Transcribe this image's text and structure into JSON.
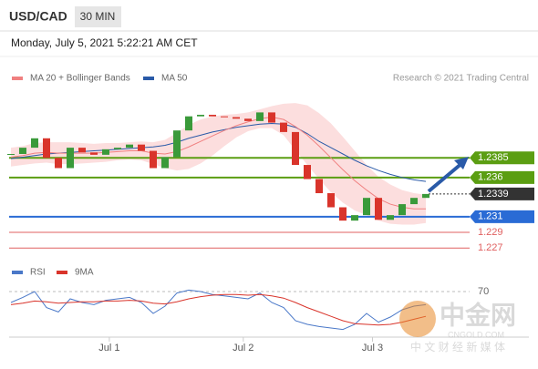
{
  "header": {
    "symbol": "USD/CAD",
    "timeframe": "30 MIN",
    "datetime": "Monday, July 5, 2021 5:22:21 AM CET"
  },
  "watermark": {
    "brand": "中金网",
    "site": "CNGOLD.COM",
    "tagline": "中 文 财 经 新 媒 体"
  },
  "chart_data": [
    {
      "type": "candlestick",
      "legend": [
        {
          "name": "MA 20 + Bollinger Bands",
          "color": "#f08080"
        },
        {
          "name": "MA 50",
          "color": "#2a5aa8"
        }
      ],
      "credit": "Research © 2021 Trading Central",
      "ylim": [
        1.2261,
        1.2476
      ],
      "close": [
        1.239,
        1.2398,
        1.241,
        1.2385,
        1.2372,
        1.2398,
        1.2392,
        1.2389,
        1.2396,
        1.2398,
        1.2402,
        1.2394,
        1.2372,
        1.2386,
        1.242,
        1.2438,
        1.244,
        1.2438,
        1.2437,
        1.2435,
        1.2432,
        1.2443,
        1.243,
        1.2418,
        1.2376,
        1.2358,
        1.234,
        1.2322,
        1.2305,
        1.2312,
        1.2334,
        1.2306,
        1.2312,
        1.2326,
        1.2334,
        1.2339
      ],
      "ma50": [
        1.2384,
        1.2386,
        1.2388,
        1.239,
        1.2391,
        1.2392,
        1.2393,
        1.2394,
        1.2395,
        1.2396,
        1.2397,
        1.2398,
        1.2399,
        1.2401,
        1.2405,
        1.241,
        1.2414,
        1.2418,
        1.2421,
        1.2424,
        1.2426,
        1.2428,
        1.2429,
        1.2428,
        1.2424,
        1.2416,
        1.2406,
        1.2398,
        1.239,
        1.2382,
        1.2375,
        1.2369,
        1.2364,
        1.236,
        1.2357,
        1.2355
      ],
      "ma20": [
        1.2386,
        1.2388,
        1.2391,
        1.2392,
        1.2391,
        1.2391,
        1.2391,
        1.2391,
        1.2392,
        1.2393,
        1.2394,
        1.2394,
        1.2391,
        1.239,
        1.2393,
        1.2399,
        1.2406,
        1.2413,
        1.242,
        1.2426,
        1.2431,
        1.2435,
        1.2437,
        1.2434,
        1.2425,
        1.2414,
        1.24,
        1.2385,
        1.237,
        1.2356,
        1.2344,
        1.2333,
        1.2326,
        1.2322,
        1.232,
        1.232
      ],
      "band_upper": [
        1.2398,
        1.24,
        1.2404,
        1.2405,
        1.2405,
        1.2405,
        1.2404,
        1.2403,
        1.2404,
        1.2404,
        1.2405,
        1.2406,
        1.2405,
        1.2408,
        1.2417,
        1.2427,
        1.2434,
        1.2438,
        1.244,
        1.2441,
        1.2443,
        1.2447,
        1.2451,
        1.2454,
        1.2455,
        1.2452,
        1.2442,
        1.2429,
        1.2412,
        1.2394,
        1.2376,
        1.2361,
        1.2351,
        1.2344,
        1.234,
        1.2338
      ],
      "band_lower": [
        1.2374,
        1.2376,
        1.2378,
        1.2379,
        1.2377,
        1.2377,
        1.2378,
        1.2379,
        1.238,
        1.2382,
        1.2383,
        1.2382,
        1.2377,
        1.2372,
        1.2369,
        1.2371,
        1.2378,
        1.2388,
        1.24,
        1.2411,
        1.2419,
        1.2423,
        1.2423,
        1.2414,
        1.2395,
        1.2376,
        1.2358,
        1.2341,
        1.2328,
        1.2318,
        1.2312,
        1.2305,
        1.2301,
        1.23,
        1.23,
        1.2302
      ],
      "levels": [
        {
          "value": 1.2385,
          "color": "#5b9e12",
          "line": "solid",
          "label_style": "box"
        },
        {
          "value": 1.236,
          "color": "#5b9e12",
          "line": "solid",
          "label_style": "box"
        },
        {
          "value": 1.2339,
          "color": "#333333",
          "line": "dotted",
          "label_style": "box"
        },
        {
          "value": 1.231,
          "color": "#2a6bd5",
          "line": "solid",
          "label_style": "box"
        },
        {
          "value": 1.229,
          "color": "#e06060",
          "line": "solid",
          "label_style": "text"
        },
        {
          "value": 1.227,
          "color": "#e06060",
          "line": "solid",
          "label_style": "text"
        }
      ]
    },
    {
      "type": "line",
      "series": [
        {
          "name": "RSI",
          "color": "#4a78c8",
          "values": [
            55,
            62,
            70,
            48,
            42,
            60,
            55,
            52,
            58,
            60,
            62,
            55,
            40,
            50,
            68,
            72,
            70,
            66,
            64,
            62,
            60,
            68,
            55,
            48,
            30,
            25,
            22,
            20,
            18,
            25,
            40,
            28,
            35,
            45,
            50,
            52
          ]
        },
        {
          "name": "9MA",
          "color": "#d9342b",
          "values": [
            52,
            54,
            57,
            56,
            54,
            55,
            56,
            56,
            57,
            57,
            58,
            57,
            54,
            53,
            56,
            60,
            63,
            65,
            66,
            66,
            65,
            66,
            64,
            61,
            55,
            48,
            42,
            36,
            30,
            26,
            25,
            24,
            25,
            28,
            32,
            36
          ]
        }
      ],
      "ylim": [
        0,
        100
      ],
      "yticks": [
        70
      ],
      "xticks": [
        {
          "value": 8.3,
          "label": "Jul 1"
        },
        {
          "value": 19.6,
          "label": "Jul 2"
        },
        {
          "value": 30.5,
          "label": "Jul 3"
        }
      ]
    }
  ]
}
